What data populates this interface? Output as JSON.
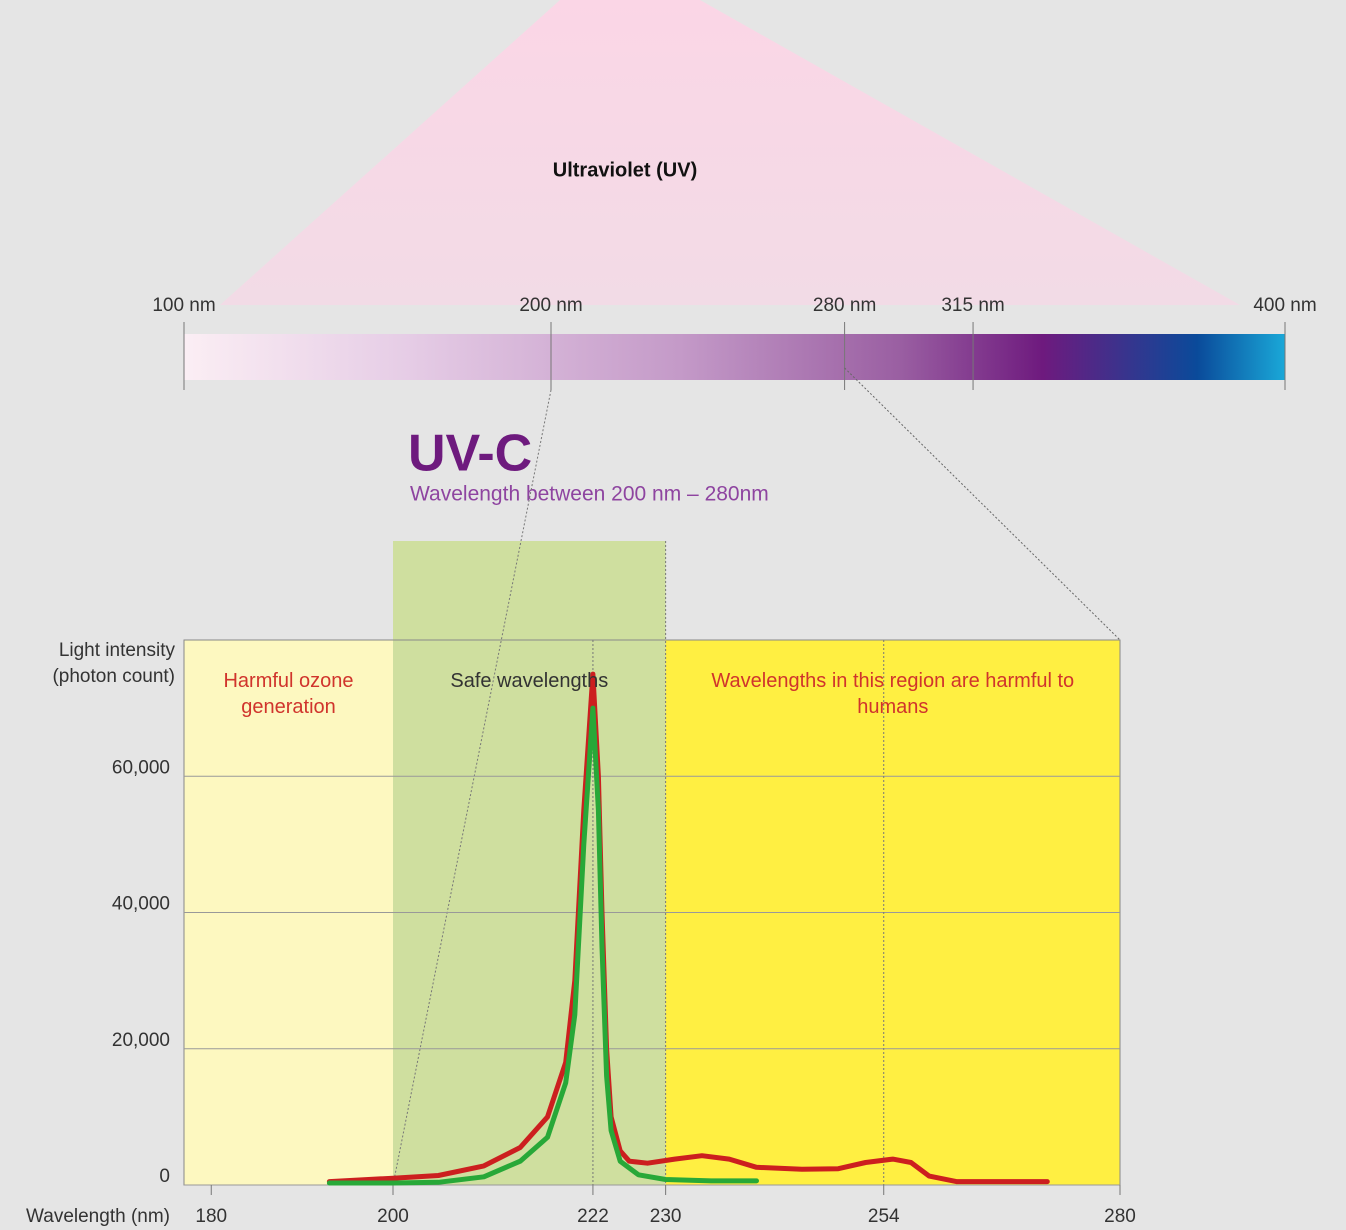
{
  "spectrum": {
    "title": "Ultraviolet (UV)",
    "xlim": [
      100,
      400
    ],
    "xticks": [
      {
        "value": 100,
        "label": "100 nm"
      },
      {
        "value": 200,
        "label": "200 nm"
      },
      {
        "value": 280,
        "label": "280 nm"
      },
      {
        "value": 315,
        "label": "315 nm"
      },
      {
        "value": 400,
        "label": "400 nm"
      }
    ]
  },
  "chart_data": {
    "type": "line",
    "title": "UV-C",
    "subtitle": "Wavelength between 200 nm – 280nm",
    "x_label": "Wavelength (nm)",
    "y_label": "Light intensity (photon count)",
    "xlim": [
      177,
      280
    ],
    "ylim": [
      0,
      80000
    ],
    "xticks": [
      180,
      200,
      222,
      230,
      254,
      280
    ],
    "yticks": [
      0,
      {
        "value": 20000,
        "label": "20,000"
      },
      {
        "value": 40000,
        "label": "40,000"
      },
      {
        "value": 60000,
        "label": "60,000"
      }
    ],
    "grid": true,
    "regions": [
      {
        "label": "Harmful ozone generation",
        "range": [
          177,
          200
        ],
        "color": "#fdf8c0",
        "label_color": "#d0342c"
      },
      {
        "label": "Safe wavelengths",
        "range": [
          200,
          230
        ],
        "color": "#cfdf9f",
        "label_color": "#333333"
      },
      {
        "label": "Wavelengths in this region are harmful to humans",
        "range": [
          230,
          280
        ],
        "color": "#ffef42",
        "label_color": "#d0342c"
      }
    ],
    "markers": [
      222,
      254
    ],
    "series": [
      {
        "color": "#cc1f1f",
        "x": [
          193,
          200,
          205,
          210,
          214,
          217,
          219,
          220,
          221,
          222,
          222.6,
          223,
          223.5,
          224,
          225,
          226,
          228,
          231,
          234,
          237,
          240,
          245,
          249,
          252,
          255,
          257,
          259,
          262,
          265,
          272
        ],
        "values": [
          500,
          1000,
          1400,
          2800,
          5500,
          10000,
          18000,
          30000,
          55000,
          75000,
          60000,
          40000,
          20000,
          10000,
          5000,
          3500,
          3200,
          3800,
          4300,
          3800,
          2600,
          2300,
          2400,
          3300,
          3800,
          3300,
          1300,
          500,
          500,
          500
        ]
      },
      {
        "color": "#28a838",
        "x": [
          193,
          200,
          205,
          210,
          214,
          217,
          219,
          220,
          221,
          222,
          222.6,
          223,
          223.5,
          224,
          225,
          227,
          230,
          235,
          240
        ],
        "values": [
          300,
          300,
          400,
          1200,
          3500,
          7000,
          15000,
          25000,
          50000,
          70000,
          55000,
          35000,
          16000,
          8000,
          3500,
          1500,
          800,
          600,
          600
        ]
      }
    ]
  }
}
